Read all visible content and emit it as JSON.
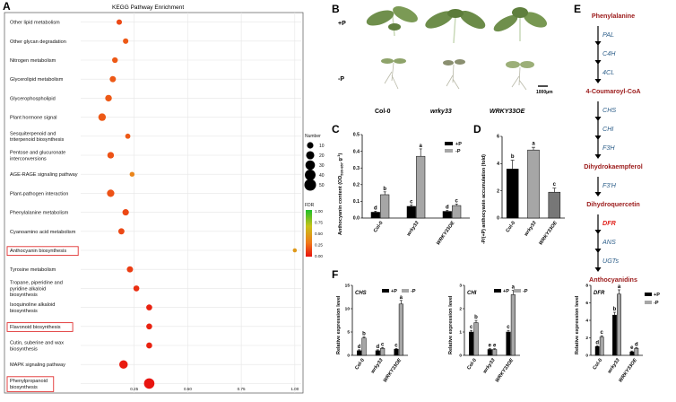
{
  "panels": {
    "a": "A",
    "b": "B",
    "c": "C",
    "d": "D",
    "e": "E",
    "f": "F"
  },
  "kegg": {
    "title": "KEGG Pathway Enrichment",
    "x_ticks": [
      "0.25",
      "0.50",
      "0.75",
      "1.00"
    ],
    "legend_number_title": "Number",
    "legend_sizes": [
      "10",
      "20",
      "30",
      "40",
      "50"
    ],
    "legend_fdr_title": "FDR",
    "legend_fdr_ticks": [
      "1.00",
      "0.75",
      "0.50",
      "0.25",
      "0.00"
    ],
    "pathways": [
      {
        "label": "Other lipid metabolism",
        "ratio": 0.18,
        "count": 6,
        "fdr": 0.15,
        "boxed": false
      },
      {
        "label": "Other glycan degradation",
        "ratio": 0.21,
        "count": 6,
        "fdr": 0.2,
        "boxed": false
      },
      {
        "label": "Nitrogen metabolism",
        "ratio": 0.16,
        "count": 7,
        "fdr": 0.2,
        "boxed": false
      },
      {
        "label": "Glycerolipid metabolism",
        "ratio": 0.15,
        "count": 9,
        "fdr": 0.2,
        "boxed": false
      },
      {
        "label": "Glycerophospholipid",
        "ratio": 0.13,
        "count": 11,
        "fdr": 0.2,
        "boxed": false
      },
      {
        "label": "Plant hormone signal",
        "ratio": 0.1,
        "count": 16,
        "fdr": 0.2,
        "boxed": false
      },
      {
        "label": "Sesquiterpenoid and triterpenoid biosynthesis",
        "ratio": 0.22,
        "count": 5,
        "fdr": 0.2,
        "boxed": false
      },
      {
        "label": "Pentose and glucuronate interconversions",
        "ratio": 0.14,
        "count": 11,
        "fdr": 0.18,
        "boxed": false
      },
      {
        "label": "AGE-RAGE signaling pathway",
        "ratio": 0.24,
        "count": 4,
        "fdr": 0.35,
        "boxed": false
      },
      {
        "label": "Plant-pathogen interaction",
        "ratio": 0.14,
        "count": 15,
        "fdr": 0.18,
        "boxed": false
      },
      {
        "label": "Phenylalanine metabolism",
        "ratio": 0.21,
        "count": 10,
        "fdr": 0.15,
        "boxed": false
      },
      {
        "label": "Cyanoamino acid metabolism",
        "ratio": 0.19,
        "count": 9,
        "fdr": 0.15,
        "boxed": false
      },
      {
        "label": "Anthocyanin biosynthesis",
        "ratio": 1.0,
        "count": 2,
        "fdr": 0.45,
        "boxed": true
      },
      {
        "label": "Tyrosine metabolism",
        "ratio": 0.23,
        "count": 9,
        "fdr": 0.12,
        "boxed": false
      },
      {
        "label": "Tropane, piperidine and pyridine alkaloid biosynthesis",
        "ratio": 0.26,
        "count": 8,
        "fdr": 0.08,
        "boxed": false
      },
      {
        "label": "Isoquinoline alkaloid biosynthesis",
        "ratio": 0.32,
        "count": 8,
        "fdr": 0.04,
        "boxed": false
      },
      {
        "label": "Flavonoid biosynthesis",
        "ratio": 0.32,
        "count": 8,
        "fdr": 0.04,
        "boxed": true
      },
      {
        "label": "Cutin, suberine and wax biosynthesis",
        "ratio": 0.32,
        "count": 8,
        "fdr": 0.04,
        "boxed": false
      },
      {
        "label": "MAPK signaling pathway",
        "ratio": 0.2,
        "count": 22,
        "fdr": 0.02,
        "boxed": false
      },
      {
        "label": "Phenylpropanoid biosynthesis",
        "ratio": 0.32,
        "count": 38,
        "fdr": 0.0,
        "boxed": true
      }
    ]
  },
  "photo": {
    "row1": "+P",
    "row2": "-P",
    "scale": "1000μm"
  },
  "panel_c": {
    "title_col0": "Col-0",
    "title_wrky33": "wrky33",
    "title_oe": "WRKY33OE",
    "ylabel": "Anthocyanin content (OD",
    "ylabel_sub": "530-657",
    "ylabel_end": " g",
    "ylabel_sup": "-1",
    "ylabel_close": ")",
    "yticks": [
      "0.0",
      "0.1",
      "0.2",
      "0.3",
      "0.4",
      "0.5"
    ],
    "legend": [
      "+P",
      "-P"
    ],
    "categories": [
      "Col-0",
      "wrky33",
      "WRKY33OE"
    ],
    "plusP": [
      0.035,
      0.07,
      0.04
    ],
    "minusP": [
      0.14,
      0.37,
      0.075
    ],
    "letters_plus": [
      "d",
      "c",
      "d"
    ],
    "letters_minus": [
      "b",
      "a",
      "c"
    ]
  },
  "panel_d": {
    "ylabel": "-P/(+P) anthocyanin accumulation (fold)",
    "yticks": [
      "0",
      "2",
      "4",
      "6"
    ],
    "categories": [
      "Col-0",
      "wrky33",
      "WRKY33OE"
    ],
    "values": [
      3.6,
      5.0,
      1.9
    ],
    "letters": [
      "b",
      "a",
      "c"
    ]
  },
  "pathway_e": [
    {
      "text": "Phenylalanine",
      "type": "compound"
    },
    {
      "text": "PAL",
      "type": "enzyme"
    },
    {
      "text": "C4H",
      "type": "enzyme"
    },
    {
      "text": "4CL",
      "type": "enzyme"
    },
    {
      "text": "4-Coumaroyl-CoA",
      "type": "compound"
    },
    {
      "text": "CHS",
      "type": "enzyme"
    },
    {
      "text": "CHI",
      "type": "enzyme"
    },
    {
      "text": "F3H",
      "type": "enzyme"
    },
    {
      "text": "Dihydrokaempferol",
      "type": "compound"
    },
    {
      "text": "F3'H",
      "type": "enzyme"
    },
    {
      "text": "Dihydroquercetin",
      "type": "compound"
    },
    {
      "text": "DFR",
      "type": "highlight"
    },
    {
      "text": "ANS",
      "type": "enzyme"
    },
    {
      "text": "UGTs",
      "type": "enzyme"
    },
    {
      "text": "Anthocyanidins",
      "type": "compound"
    }
  ],
  "panel_f": {
    "ylabel": "Relative expression level",
    "legend": [
      "+P",
      "-P"
    ],
    "categories": [
      "Col-0",
      "wrky33",
      "WRKY33OE"
    ],
    "charts": [
      {
        "gene": "CHS",
        "yticks": [
          "0",
          "5",
          "10",
          "15"
        ],
        "ymax": 15,
        "plus": [
          1,
          1,
          1.3
        ],
        "minus": [
          3.7,
          1.5,
          11
        ],
        "lp": [
          "d",
          "d",
          "c"
        ],
        "lm": [
          "b",
          "c",
          "a"
        ]
      },
      {
        "gene": "CHI",
        "yticks": [
          "0",
          "1",
          "2",
          "3"
        ],
        "ymax": 3,
        "plus": [
          1,
          0.25,
          1
        ],
        "minus": [
          1.4,
          0.25,
          2.6
        ],
        "lp": [
          "c",
          "e",
          "c"
        ],
        "lm": [
          "b",
          "e",
          "a"
        ]
      },
      {
        "gene": "DFR",
        "yticks": [
          "0",
          "2",
          "4",
          "6",
          "8"
        ],
        "ymax": 8,
        "plus": [
          1,
          4.6,
          0.4
        ],
        "minus": [
          2.1,
          7,
          0.8
        ],
        "lp": [
          "d",
          "b",
          "e"
        ],
        "lm": [
          "c",
          "a",
          "d"
        ]
      }
    ]
  },
  "colors": {
    "compound": "#9b1a1a",
    "enzyme": "#2e5f8a",
    "highlight": "#e0201a",
    "bar_plus": "#000000",
    "bar_minus": "#a6a6a6"
  }
}
